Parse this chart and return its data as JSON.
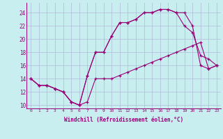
{
  "xlabel": "Windchill (Refroidissement éolien,°C)",
  "bg_color": "#c8eef0",
  "grid_color": "#b0b8d8",
  "line_color": "#990077",
  "xlim": [
    -0.5,
    23.5
  ],
  "ylim": [
    9.5,
    25.5
  ],
  "xticks": [
    0,
    1,
    2,
    3,
    4,
    5,
    6,
    7,
    8,
    9,
    10,
    11,
    12,
    13,
    14,
    15,
    16,
    17,
    18,
    19,
    20,
    21,
    22,
    23
  ],
  "yticks": [
    10,
    12,
    14,
    16,
    18,
    20,
    22,
    24
  ],
  "line1_x": [
    0,
    1,
    2,
    3,
    4,
    5,
    6,
    7,
    8,
    9,
    10,
    11,
    12,
    13,
    14,
    15,
    16,
    17,
    18,
    19,
    20,
    21,
    22,
    23
  ],
  "line1_y": [
    14,
    13,
    13,
    12.5,
    12,
    10.5,
    10,
    10.5,
    14,
    14,
    14,
    14.5,
    15,
    15.5,
    16,
    16.5,
    17,
    17.5,
    18,
    18.5,
    19,
    19.5,
    15.5,
    16
  ],
  "line2_x": [
    0,
    1,
    2,
    3,
    4,
    5,
    6,
    7,
    8,
    9,
    10,
    11,
    12,
    13,
    14,
    15,
    16,
    17,
    18,
    19,
    20,
    21,
    22,
    23
  ],
  "line2_y": [
    14,
    13,
    13,
    12.5,
    12,
    10.5,
    10,
    14.5,
    18,
    18,
    20.5,
    22.5,
    22.5,
    23,
    24,
    24,
    24.5,
    24.5,
    24,
    22,
    21,
    17.5,
    17,
    16
  ],
  "line3_x": [
    0,
    1,
    2,
    3,
    4,
    5,
    6,
    7,
    8,
    9,
    10,
    11,
    12,
    13,
    14,
    15,
    16,
    17,
    18,
    19,
    20,
    21,
    22,
    23
  ],
  "line3_y": [
    14,
    13,
    13,
    12.5,
    12,
    10.5,
    10,
    14.5,
    18,
    18,
    20.5,
    22.5,
    22.5,
    23,
    24,
    24,
    24.5,
    24.5,
    24,
    24,
    22,
    16,
    15.5,
    16
  ]
}
